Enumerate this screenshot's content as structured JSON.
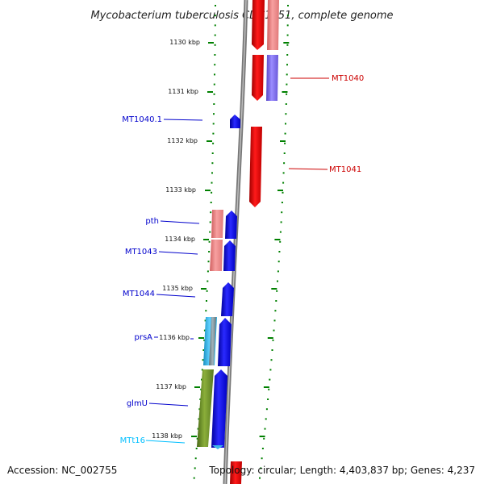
{
  "title": "Mycobacterium tuberculosis CDC1551, complete genome",
  "footer": {
    "accession": "Accession: NC_002755",
    "summary": "Topology: circular; Length: 4,403,837 bp; Genes: 4,237"
  },
  "ticks": [
    "1130 kbp",
    "1131 kbp",
    "1132 kbp",
    "1133 kbp",
    "1134 kbp",
    "1135 kbp",
    "1136 kbp",
    "1137 kbp",
    "1138 kbp"
  ],
  "labels": {
    "mt1040": "MT1040",
    "mt1041": "MT1041",
    "mt1040_1": "MT1040.1",
    "pth": "pth",
    "mt1043": "MT1043",
    "mt1044": "MT1044",
    "prsA": "prsA",
    "glmU": "glmU",
    "mtt16": "MTt16"
  },
  "colors": {
    "forward_cds": "#ff0000",
    "reverse_cds": "#0000ff",
    "forward_gene": "#f08080",
    "forward_protein": "#7b68ee",
    "reverse_gene": "#f08080",
    "prsA_gene": "#3fb8e6",
    "glmU_gene": "#6b8e23",
    "trna_label": "#00bfff",
    "backbone": "#808080",
    "tick_mark": "#008000"
  }
}
